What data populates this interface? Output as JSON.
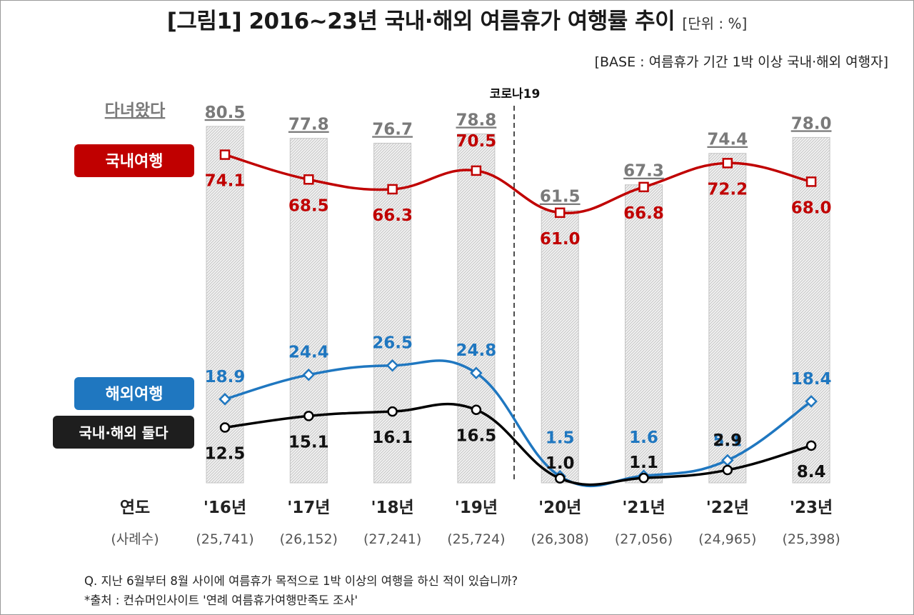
{
  "header": {
    "title": "[그림1] 2016~23년 국내·해외 여름휴가 여행률 추이",
    "unit": "[단위 : %]",
    "base": "[BASE : 여름휴가 기간 1박 이상 국내·해외 여행자]"
  },
  "chart_data": {
    "type": "bar+line",
    "categories": [
      "'16년",
      "'17년",
      "'18년",
      "'19년",
      "'20년",
      "'21년",
      "'22년",
      "'23년"
    ],
    "sample_sizes": [
      "(25,741)",
      "(26,152)",
      "(27,241)",
      "(25,724)",
      "(26,308)",
      "(27,056)",
      "(24,965)",
      "(25,398)"
    ],
    "bars": {
      "name": "다녀왔다",
      "values": [
        80.5,
        77.8,
        76.7,
        78.8,
        61.5,
        67.3,
        74.4,
        78.0
      ],
      "labels": [
        "80.5",
        "77.8",
        "76.7",
        "78.8",
        "61.5",
        "67.3",
        "74.4",
        "78.0"
      ]
    },
    "series": [
      {
        "name": "국내여행",
        "color": "#c00000",
        "values": [
          74.1,
          68.5,
          66.3,
          70.5,
          61.0,
          66.8,
          72.2,
          68.0
        ],
        "labels": [
          "74.1",
          "68.5",
          "66.3",
          "70.5",
          "61.0",
          "66.8",
          "72.2",
          "68.0"
        ]
      },
      {
        "name": "해외여행",
        "color": "#1f77c0",
        "values": [
          18.9,
          24.4,
          26.5,
          24.8,
          1.5,
          1.6,
          5.1,
          18.4
        ],
        "labels": [
          "18.9",
          "24.4",
          "26.5",
          "24.8",
          "1.5",
          "1.6",
          "5.1",
          "18.4"
        ]
      },
      {
        "name": "국내·해외 둘다",
        "color": "#000000",
        "values": [
          12.5,
          15.1,
          16.1,
          16.5,
          1.0,
          1.1,
          2.9,
          8.4
        ],
        "labels": [
          "12.5",
          "15.1",
          "16.1",
          "16.5",
          "1.0",
          "1.1",
          "2.9",
          "8.4"
        ]
      }
    ],
    "xlabel": "연도",
    "sample_label": "(사례수)",
    "annotation": "코로나19",
    "grid": false
  },
  "footnote": {
    "question": "Q. 지난 6월부터 8월 사이에 여름휴가 목적으로 1박 이상의 여행을 하신 적이 있습니까?",
    "source": "*출처 : 컨슈머인사이트 '연례 여름휴가여행만족도 조사'"
  }
}
